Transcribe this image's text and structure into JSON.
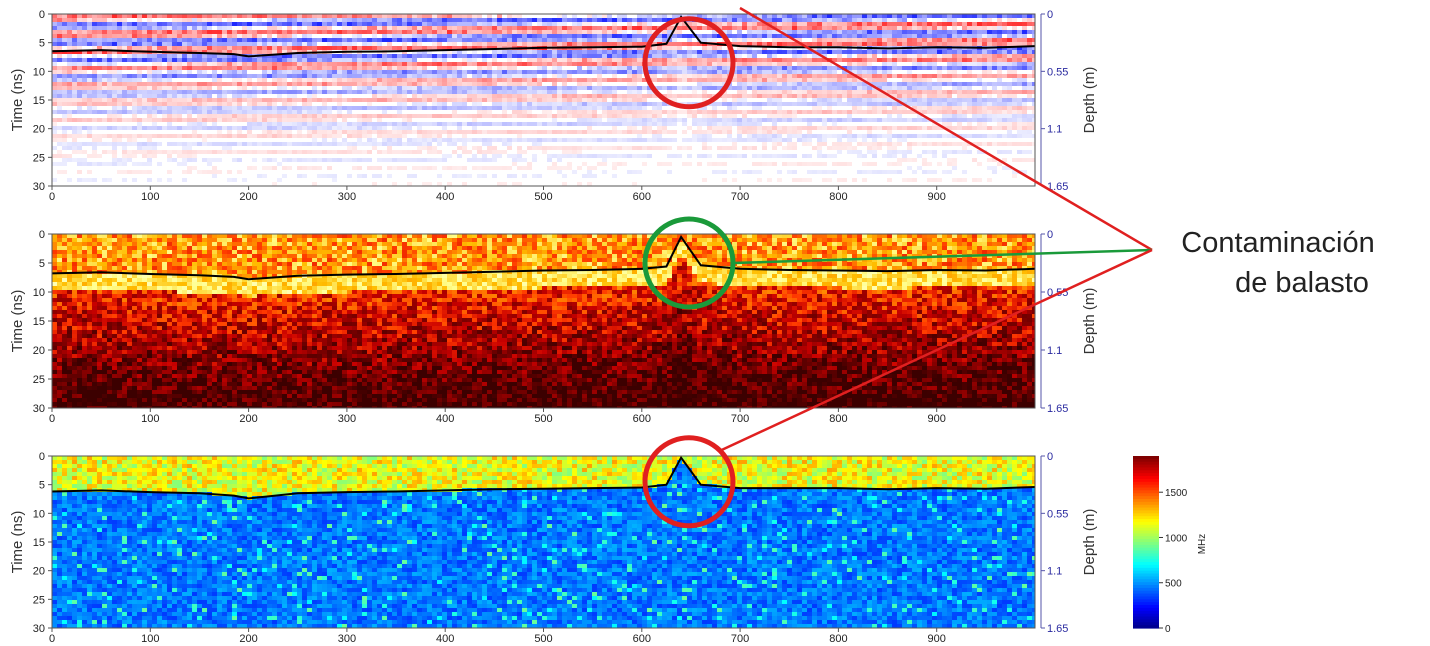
{
  "annotation": {
    "line1": "Contaminación",
    "line2": "de balasto",
    "colors": {
      "red": "#e02020",
      "green": "#1a9a3a"
    }
  },
  "chart_data": [
    {
      "type": "heatmap",
      "colormap": "red-white-blue",
      "ylabel": "Time (ns)",
      "ylabel_right": "Depth (m)",
      "xlim": [
        0,
        1000
      ],
      "ylim": [
        30,
        0
      ],
      "x_ticks": [
        "0",
        "100",
        "200",
        "300",
        "400",
        "500",
        "600",
        "700",
        "800",
        "900"
      ],
      "y_ticks": [
        "0",
        "5",
        "10",
        "15",
        "20",
        "25",
        "30"
      ],
      "y_right_ticks": [
        "0",
        "0.55",
        "1.1",
        "1.65"
      ],
      "highlight": {
        "shape": "circle",
        "color": "red",
        "x": 648,
        "y": 8.5
      },
      "interface": {
        "x": [
          0,
          50,
          100,
          150,
          185,
          200,
          250,
          300,
          350,
          400,
          450,
          500,
          550,
          600,
          625,
          640,
          660,
          700,
          750,
          800,
          850,
          900,
          950,
          1000
        ],
        "y": [
          6.5,
          6.3,
          6.6,
          6.8,
          7.0,
          7.4,
          6.8,
          6.6,
          6.5,
          6.3,
          6.1,
          5.9,
          5.8,
          5.7,
          5.2,
          0.5,
          5.0,
          5.6,
          5.8,
          5.8,
          6.0,
          5.8,
          5.9,
          5.6
        ]
      }
    },
    {
      "type": "heatmap",
      "colormap": "hot",
      "ylabel": "Time (ns)",
      "ylabel_right": "Depth (m)",
      "xlim": [
        0,
        1000
      ],
      "ylim": [
        30,
        0
      ],
      "x_ticks": [
        "0",
        "100",
        "200",
        "300",
        "400",
        "500",
        "600",
        "700",
        "800",
        "900"
      ],
      "y_ticks": [
        "0",
        "5",
        "10",
        "15",
        "20",
        "25",
        "30"
      ],
      "y_right_ticks": [
        "0",
        "0.55",
        "1.1",
        "1.65"
      ],
      "highlight": {
        "shape": "circle",
        "color": "green",
        "x": 648,
        "y": 5.0
      },
      "interface": {
        "x": [
          0,
          50,
          100,
          150,
          185,
          200,
          250,
          300,
          350,
          400,
          450,
          500,
          550,
          600,
          625,
          640,
          660,
          700,
          750,
          800,
          850,
          900,
          950,
          1000
        ],
        "y": [
          6.8,
          6.6,
          6.9,
          7.1,
          7.4,
          7.8,
          7.2,
          7.0,
          6.9,
          6.7,
          6.5,
          6.3,
          6.2,
          6.0,
          5.6,
          0.5,
          5.4,
          6.0,
          6.2,
          6.3,
          6.4,
          6.2,
          6.3,
          6.0
        ]
      }
    },
    {
      "type": "heatmap",
      "colormap": "jet",
      "ylabel": "Time (ns)",
      "ylabel_right": "Depth (m)",
      "xlim": [
        0,
        1000
      ],
      "ylim": [
        30,
        0
      ],
      "x_ticks": [
        "0",
        "100",
        "200",
        "300",
        "400",
        "500",
        "600",
        "700",
        "800",
        "900"
      ],
      "y_ticks": [
        "0",
        "5",
        "10",
        "15",
        "20",
        "25",
        "30"
      ],
      "y_right_ticks": [
        "0",
        "0.55",
        "1.1",
        "1.65"
      ],
      "highlight": {
        "shape": "circle",
        "color": "red",
        "x": 648,
        "y": 4.5
      },
      "interface": {
        "x": [
          0,
          50,
          100,
          150,
          185,
          200,
          250,
          300,
          350,
          400,
          450,
          500,
          550,
          600,
          625,
          640,
          660,
          700,
          750,
          800,
          850,
          900,
          950,
          1000
        ],
        "y": [
          6.2,
          6.0,
          6.3,
          6.5,
          6.9,
          7.4,
          6.5,
          6.3,
          6.2,
          6.0,
          5.8,
          5.7,
          5.6,
          5.5,
          5.0,
          0.3,
          5.0,
          5.6,
          5.6,
          5.6,
          5.8,
          5.6,
          5.7,
          5.4
        ]
      },
      "colorbar": {
        "label": "MHz",
        "ticks": [
          "0",
          "500",
          "1000",
          "1500"
        ],
        "range": [
          0,
          1900
        ]
      }
    }
  ]
}
